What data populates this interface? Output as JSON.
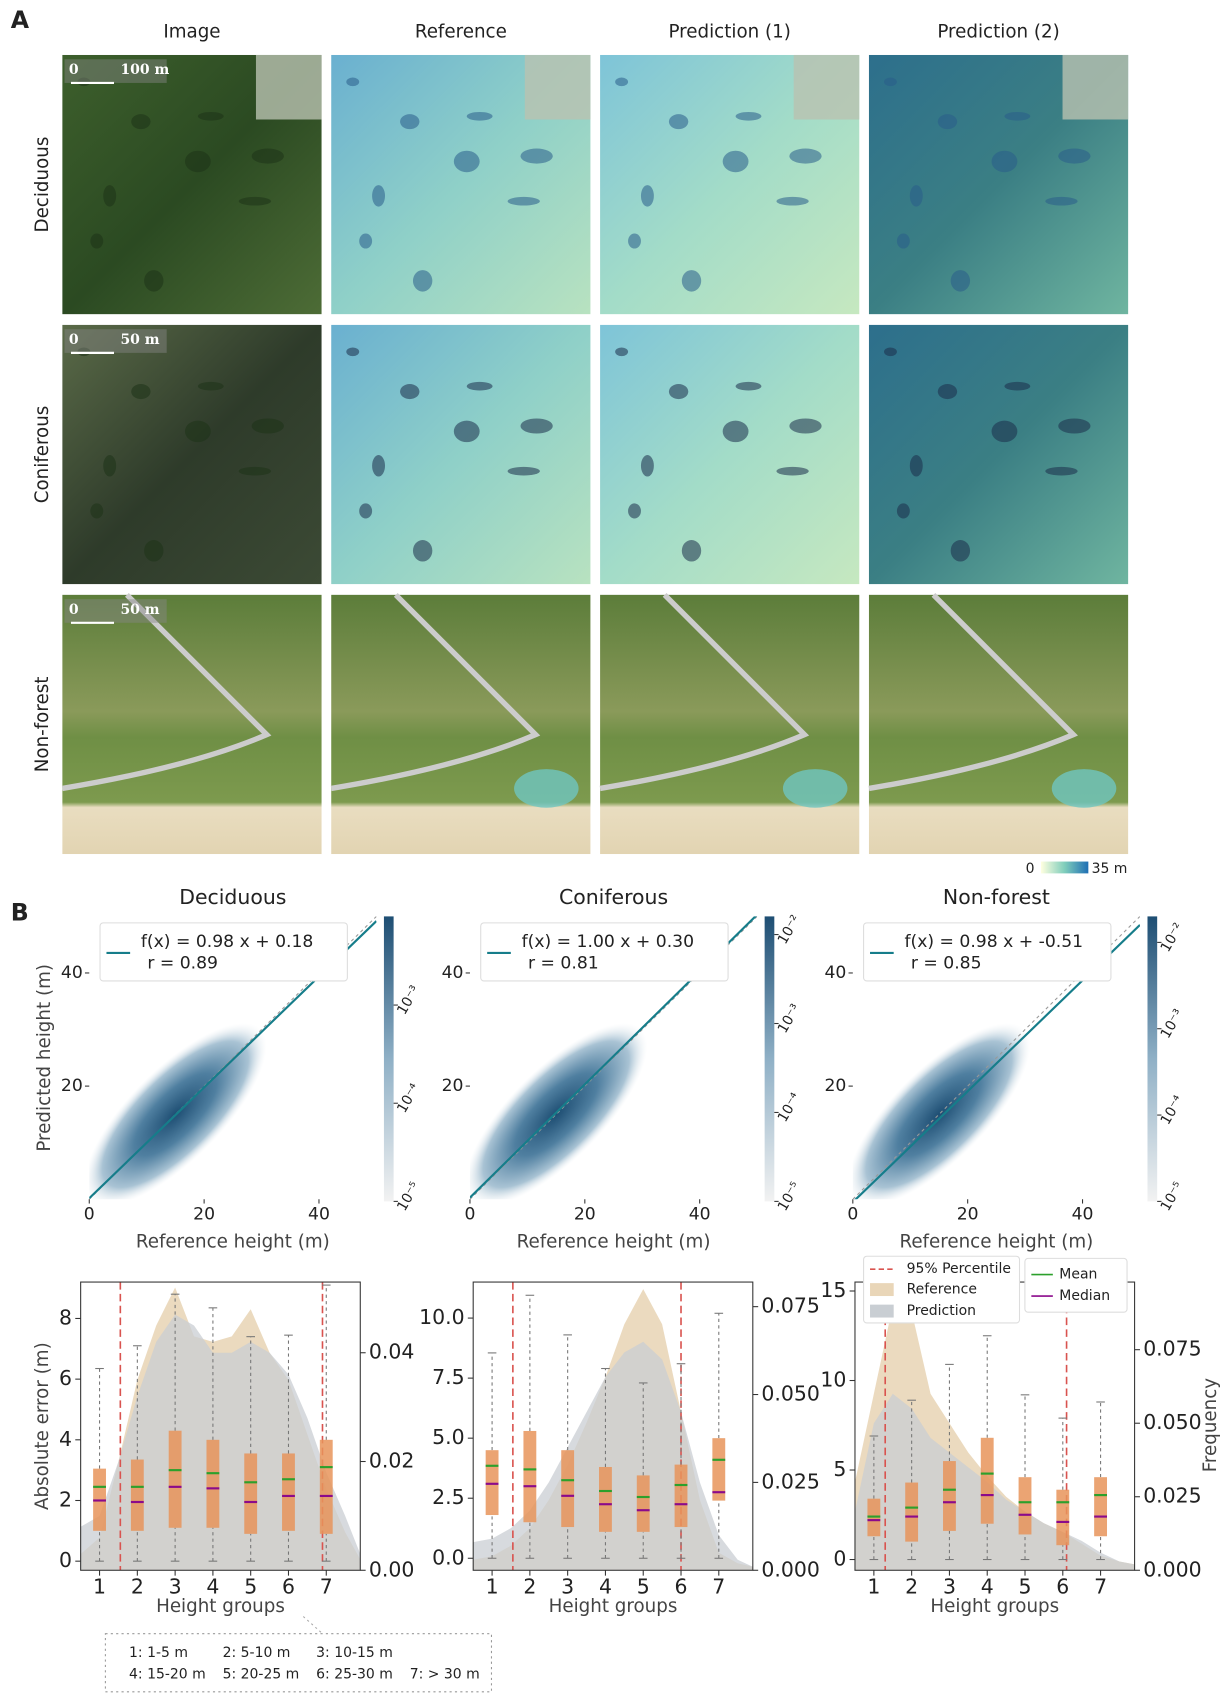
{
  "panel_a": {
    "label": "A",
    "columns": [
      "Image",
      "Reference",
      "Prediction (1)",
      "Prediction (2)"
    ],
    "rows": [
      "Deciduous",
      "Coniferous",
      "Non-forest"
    ],
    "scale_bars": [
      {
        "start": "0",
        "end": "100 m"
      },
      {
        "start": "0",
        "end": "50 m"
      },
      {
        "start": "0",
        "end": "50 m"
      }
    ],
    "colorbar": {
      "min": "0",
      "max": "35 m"
    }
  },
  "panel_b_label": "B",
  "group_key": [
    "1: 1-5 m",
    "2: 5-10 m",
    "3: 10-15 m",
    "4: 15-20 m",
    "5: 20-25 m",
    "6: 25-30 m",
    "7: > 30 m"
  ],
  "chart_data": [
    {
      "type": "density",
      "title": "Deciduous",
      "xlabel": "Reference height (m)",
      "ylabel": "Predicted height (m)",
      "xlim": [
        0,
        50
      ],
      "ylim": [
        0,
        50
      ],
      "xticks": [
        0,
        20,
        40
      ],
      "yticks": [
        20,
        40
      ],
      "fit": {
        "slope": 0.98,
        "intercept": 0.18
      },
      "fit_label": "f(x) =  0.98 x +  0.18",
      "r_label": "r =  0.89",
      "color": "#167d8a",
      "log_color_scale": true,
      "clim": [
        1e-05,
        0.008
      ],
      "cticks": [
        {
          "value": 1e-05,
          "label": "10⁻⁵"
        },
        {
          "value": 0.0001,
          "label": "10⁻⁴"
        },
        {
          "value": 0.001,
          "label": "10⁻³"
        }
      ]
    },
    {
      "type": "density",
      "title": "Coniferous",
      "xlabel": "Reference height (m)",
      "xlim": [
        0,
        50
      ],
      "ylim": [
        0,
        50
      ],
      "xticks": [
        0,
        20,
        40
      ],
      "yticks": [
        20,
        40
      ],
      "fit": {
        "slope": 1.0,
        "intercept": 0.3
      },
      "fit_label": "f(x) =  1.00 x +  0.30",
      "r_label": "r =  0.81",
      "color": "#167d8a",
      "log_color_scale": true,
      "clim": [
        1e-05,
        0.016
      ],
      "cticks": [
        {
          "value": 1e-05,
          "label": "10⁻⁵"
        },
        {
          "value": 0.0001,
          "label": "10⁻⁴"
        },
        {
          "value": 0.001,
          "label": "10⁻³"
        },
        {
          "value": 0.01,
          "label": "10⁻²"
        }
      ]
    },
    {
      "type": "density",
      "title": "Non-forest",
      "xlabel": "Reference height (m)",
      "xlim": [
        0,
        50
      ],
      "ylim": [
        0,
        50
      ],
      "xticks": [
        0,
        20,
        40
      ],
      "yticks": [
        20,
        40
      ],
      "fit": {
        "slope": 0.98,
        "intercept": -0.51
      },
      "fit_label": "f(x) =  0.98 x + -0.51",
      "r_label": "r =  0.85",
      "color": "#167d8a",
      "log_color_scale": true,
      "clim": [
        1e-05,
        0.02
      ],
      "cticks": [
        {
          "value": 1e-05,
          "label": "10⁻⁵"
        },
        {
          "value": 0.0001,
          "label": "10⁻⁴"
        },
        {
          "value": 0.001,
          "label": "10⁻³"
        },
        {
          "value": 0.01,
          "label": "10⁻²"
        }
      ]
    },
    {
      "type": "box",
      "xlabel": "Height groups",
      "ylabel": "Absolute error (m)",
      "xlim": [
        0.5,
        7.9
      ],
      "xticks": [
        1,
        2,
        3,
        4,
        5,
        6,
        7
      ],
      "ylim": [
        -0.3,
        9.2
      ],
      "yticks": [
        0,
        2,
        4,
        6,
        8
      ],
      "y2lim": [
        0,
        0.053
      ],
      "y2ticks": [
        {
          "value": 0,
          "label": "0.00"
        },
        {
          "value": 0.02,
          "label": "0.02"
        },
        {
          "value": 0.04,
          "label": "0.04"
        }
      ],
      "percentiles": [
        1.55,
        6.9
      ],
      "boxes": [
        {
          "whislo": 0,
          "q1": 1.0,
          "median": 2.0,
          "mean": 2.45,
          "q3": 3.05,
          "whishi": 6.35
        },
        {
          "whislo": 0,
          "q1": 1.0,
          "median": 1.95,
          "mean": 2.45,
          "q3": 3.35,
          "whishi": 7.1
        },
        {
          "whislo": 0,
          "q1": 1.1,
          "median": 2.45,
          "mean": 3.0,
          "q3": 4.3,
          "whishi": 8.8
        },
        {
          "whislo": 0,
          "q1": 1.1,
          "median": 2.4,
          "mean": 2.9,
          "q3": 4.0,
          "whishi": 8.35
        },
        {
          "whislo": 0,
          "q1": 0.9,
          "median": 1.95,
          "mean": 2.6,
          "q3": 3.55,
          "whishi": 7.4
        },
        {
          "whislo": 0,
          "q1": 1.0,
          "median": 2.15,
          "mean": 2.7,
          "q3": 3.55,
          "whishi": 7.45
        },
        {
          "whislo": 0,
          "q1": 0.9,
          "median": 2.15,
          "mean": 3.1,
          "q3": 4.0,
          "whishi": 9.1
        }
      ],
      "x": [
        0.5,
        1,
        1.5,
        2,
        2.5,
        3,
        3.5,
        4,
        4.5,
        5,
        5.5,
        6,
        6.5,
        7,
        7.5,
        7.9
      ],
      "series": [
        {
          "name": "Reference",
          "color": "#e9d6b8",
          "axis": "y2",
          "values": [
            0.003,
            0.006,
            0.02,
            0.035,
            0.045,
            0.052,
            0.043,
            0.042,
            0.043,
            0.048,
            0.04,
            0.035,
            0.025,
            0.015,
            0.007,
            0.002
          ]
        },
        {
          "name": "Prediction",
          "color": "#c9ced3",
          "axis": "y2",
          "values": [
            0.008,
            0.01,
            0.02,
            0.032,
            0.042,
            0.047,
            0.045,
            0.04,
            0.04,
            0.042,
            0.04,
            0.036,
            0.028,
            0.018,
            0.01,
            0.003
          ]
        }
      ]
    },
    {
      "type": "box",
      "xlabel": "Height groups",
      "xlim": [
        0.5,
        7.9
      ],
      "xticks": [
        1,
        2,
        3,
        4,
        5,
        6,
        7
      ],
      "ylim": [
        -0.5,
        11.5
      ],
      "yticks": [
        {
          "value": 0,
          "label": "0.0"
        },
        {
          "value": 2.5,
          "label": "2.5"
        },
        {
          "value": 5,
          "label": "5.0"
        },
        {
          "value": 7.5,
          "label": "7.5"
        },
        {
          "value": 10,
          "label": "10.0"
        }
      ],
      "y2lim": [
        0,
        0.082
      ],
      "y2ticks": [
        {
          "value": 0,
          "label": "0.000"
        },
        {
          "value": 0.025,
          "label": "0.025"
        },
        {
          "value": 0.05,
          "label": "0.050"
        },
        {
          "value": 0.075,
          "label": "0.075"
        }
      ],
      "percentiles": [
        1.55,
        6.0
      ],
      "boxes": [
        {
          "whislo": 0,
          "q1": 1.8,
          "median": 3.1,
          "mean": 3.85,
          "q3": 4.5,
          "whishi": 8.55
        },
        {
          "whislo": 0,
          "q1": 1.5,
          "median": 3.0,
          "mean": 3.7,
          "q3": 5.3,
          "whishi": 10.95
        },
        {
          "whislo": 0,
          "q1": 1.3,
          "median": 2.6,
          "mean": 3.25,
          "q3": 4.5,
          "whishi": 9.3
        },
        {
          "whislo": 0,
          "q1": 1.1,
          "median": 2.25,
          "mean": 2.8,
          "q3": 3.8,
          "whishi": 7.9
        },
        {
          "whislo": 0,
          "q1": 1.1,
          "median": 2.0,
          "mean": 2.55,
          "q3": 3.45,
          "whishi": 7.3
        },
        {
          "whislo": 0,
          "q1": 1.3,
          "median": 2.25,
          "mean": 3.05,
          "q3": 3.9,
          "whishi": 8.1
        },
        {
          "whislo": 0,
          "q1": 2.4,
          "median": 2.75,
          "mean": 4.1,
          "q3": 5.0,
          "whishi": 10.2
        }
      ],
      "x": [
        0.5,
        1,
        1.5,
        2,
        2.5,
        3,
        3.5,
        4,
        4.5,
        5,
        5.5,
        6,
        6.5,
        7,
        7.5,
        7.9
      ],
      "series": [
        {
          "name": "Reference",
          "color": "#e9d6b8",
          "axis": "y2",
          "values": [
            0.003,
            0.004,
            0.007,
            0.012,
            0.02,
            0.03,
            0.042,
            0.055,
            0.07,
            0.08,
            0.07,
            0.045,
            0.02,
            0.005,
            0.002,
            0.001
          ]
        },
        {
          "name": "Prediction",
          "color": "#c9ced3",
          "axis": "y2",
          "values": [
            0.008,
            0.009,
            0.012,
            0.017,
            0.025,
            0.035,
            0.045,
            0.055,
            0.062,
            0.065,
            0.06,
            0.045,
            0.025,
            0.01,
            0.003,
            0.001
          ]
        }
      ]
    },
    {
      "type": "box",
      "xlabel": "Height groups",
      "y2label": "Frequency",
      "xlim": [
        0.5,
        7.9
      ],
      "xticks": [
        1,
        2,
        3,
        4,
        5,
        6,
        7
      ],
      "ylim": [
        -0.6,
        15.5
      ],
      "yticks": [
        0,
        5,
        10,
        15
      ],
      "y2lim": [
        0,
        0.098
      ],
      "y2ticks": [
        {
          "value": 0,
          "label": "0.000"
        },
        {
          "value": 0.025,
          "label": "0.025"
        },
        {
          "value": 0.05,
          "label": "0.050"
        },
        {
          "value": 0.075,
          "label": "0.075"
        }
      ],
      "percentiles": [
        1.3,
        6.1
      ],
      "percentile_label": "95% Percentile",
      "mean_label": "Mean",
      "median_label": "Median",
      "boxes": [
        {
          "whislo": 0,
          "q1": 1.3,
          "median": 2.2,
          "mean": 2.4,
          "q3": 3.4,
          "whishi": 6.9
        },
        {
          "whislo": 0,
          "q1": 1.0,
          "median": 2.4,
          "mean": 2.9,
          "q3": 4.3,
          "whishi": 8.9
        },
        {
          "whislo": 0,
          "q1": 1.6,
          "median": 3.2,
          "mean": 3.9,
          "q3": 5.5,
          "whishi": 10.9
        },
        {
          "whislo": 0,
          "q1": 2.0,
          "median": 3.6,
          "mean": 4.8,
          "q3": 6.8,
          "whishi": 12.5
        },
        {
          "whislo": 0,
          "q1": 1.4,
          "median": 2.5,
          "mean": 3.2,
          "q3": 4.6,
          "whishi": 9.2
        },
        {
          "whislo": 0,
          "q1": 0.8,
          "median": 2.1,
          "mean": 3.2,
          "q3": 3.9,
          "whishi": 7.9
        },
        {
          "whislo": 0,
          "q1": 1.3,
          "median": 2.4,
          "mean": 3.6,
          "q3": 4.6,
          "whishi": 8.8
        }
      ],
      "x": [
        0.5,
        1,
        1.5,
        2,
        2.5,
        3,
        3.5,
        4,
        4.5,
        5,
        5.5,
        6,
        6.5,
        7,
        7.5,
        7.9
      ],
      "series": [
        {
          "name": "Reference",
          "color": "#e9d6b8",
          "axis": "y2",
          "values": [
            0.03,
            0.06,
            0.09,
            0.088,
            0.06,
            0.05,
            0.04,
            0.032,
            0.025,
            0.02,
            0.016,
            0.013,
            0.009,
            0.005,
            0.003,
            0.002
          ]
        },
        {
          "name": "Prediction",
          "color": "#c9ced3",
          "axis": "y2",
          "values": [
            0.02,
            0.05,
            0.06,
            0.055,
            0.045,
            0.04,
            0.035,
            0.03,
            0.024,
            0.02,
            0.016,
            0.013,
            0.01,
            0.006,
            0.003,
            0.002
          ]
        }
      ]
    }
  ]
}
